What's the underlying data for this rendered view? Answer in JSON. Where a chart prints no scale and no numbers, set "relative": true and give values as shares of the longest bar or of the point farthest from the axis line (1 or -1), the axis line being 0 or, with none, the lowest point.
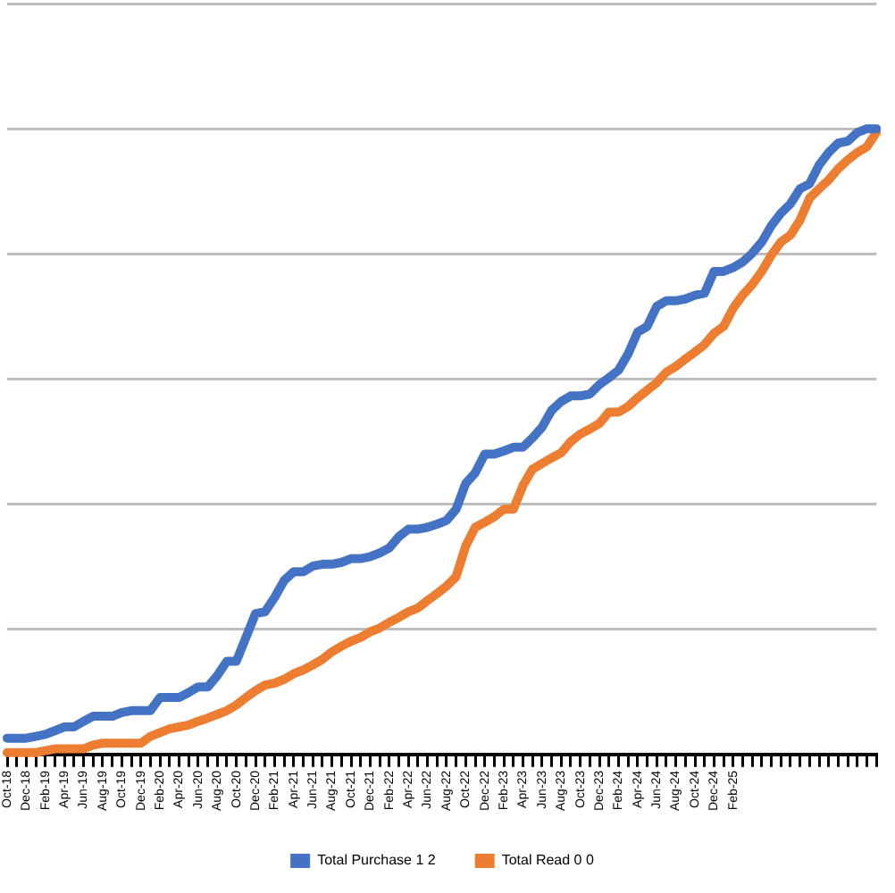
{
  "chart_data": {
    "type": "line",
    "relative": true,
    "grid": "y",
    "legend": "bottom",
    "marker": "none",
    "line_style": "solid",
    "categories": [
      "Oct-18",
      null,
      "Dec-18",
      null,
      "Feb-19",
      null,
      "Apr-19",
      null,
      "Jun-19",
      null,
      "Aug-19",
      null,
      "Oct-19",
      null,
      "Dec-19",
      null,
      "Feb-20",
      null,
      "Apr-20",
      null,
      "Jun-20",
      null,
      "Aug-20",
      null,
      "Oct-20",
      null,
      "Dec-20",
      null,
      "Feb-21",
      null,
      "Apr-21",
      null,
      "Jun-21",
      null,
      "Aug-21",
      null,
      "Oct-21",
      null,
      "Dec-21",
      null,
      "Feb-22",
      null,
      "Apr-22",
      null,
      "Jun-22",
      null,
      "Aug-22",
      null,
      "Oct-22",
      null,
      "Dec-22",
      null,
      "Feb-23",
      null,
      "Apr-23",
      null,
      "Jun-23",
      null,
      "Aug-23",
      null,
      "Oct-23",
      null,
      "Dec-23",
      null,
      "Feb-24",
      null,
      "Apr-24",
      null,
      "Jun-24",
      null,
      "Aug-24",
      null,
      "Oct-24",
      null,
      "Dec-24",
      null,
      "Feb-25",
      null,
      null,
      null,
      null,
      null,
      null,
      null,
      null,
      null,
      null,
      null,
      null,
      null,
      null,
      null
    ],
    "series": [
      {
        "name": "Total Purchase 1 2",
        "color": "#4472c4",
        "values": [
          0.026,
          0.026,
          0.026,
          0.029,
          0.032,
          0.038,
          0.044,
          0.044,
          0.053,
          0.061,
          0.061,
          0.061,
          0.067,
          0.07,
          0.07,
          0.07,
          0.091,
          0.091,
          0.091,
          0.099,
          0.108,
          0.108,
          0.126,
          0.149,
          0.149,
          0.187,
          0.225,
          0.228,
          0.251,
          0.278,
          0.292,
          0.292,
          0.301,
          0.304,
          0.304,
          0.307,
          0.313,
          0.313,
          0.316,
          0.322,
          0.33,
          0.348,
          0.36,
          0.36,
          0.363,
          0.368,
          0.374,
          0.392,
          0.433,
          0.45,
          0.48,
          0.48,
          0.485,
          0.491,
          0.491,
          0.506,
          0.523,
          0.55,
          0.564,
          0.573,
          0.573,
          0.576,
          0.591,
          0.602,
          0.614,
          0.64,
          0.675,
          0.684,
          0.716,
          0.725,
          0.725,
          0.728,
          0.734,
          0.737,
          0.772,
          0.772,
          0.778,
          0.787,
          0.801,
          0.819,
          0.845,
          0.865,
          0.88,
          0.904,
          0.912,
          0.942,
          0.962,
          0.977,
          0.98,
          0.994,
          1,
          1
        ]
      },
      {
        "name": "Total Read 0 0",
        "color": "#ed7d31",
        "values": [
          0.003,
          0.003,
          0.003,
          0.003,
          0.006,
          0.009,
          0.009,
          0.009,
          0.009,
          0.015,
          0.018,
          0.018,
          0.018,
          0.018,
          0.018,
          0.029,
          0.035,
          0.041,
          0.044,
          0.047,
          0.053,
          0.058,
          0.064,
          0.07,
          0.079,
          0.091,
          0.102,
          0.111,
          0.114,
          0.12,
          0.129,
          0.135,
          0.143,
          0.152,
          0.164,
          0.173,
          0.181,
          0.187,
          0.196,
          0.202,
          0.211,
          0.219,
          0.228,
          0.234,
          0.246,
          0.257,
          0.269,
          0.284,
          0.333,
          0.363,
          0.371,
          0.38,
          0.392,
          0.392,
          0.43,
          0.456,
          0.465,
          0.474,
          0.482,
          0.5,
          0.512,
          0.52,
          0.529,
          0.547,
          0.547,
          0.556,
          0.57,
          0.582,
          0.594,
          0.611,
          0.62,
          0.632,
          0.643,
          0.655,
          0.673,
          0.684,
          0.713,
          0.734,
          0.751,
          0.772,
          0.798,
          0.819,
          0.83,
          0.854,
          0.889,
          0.904,
          0.918,
          0.936,
          0.95,
          0.962,
          0.971,
          0.994
        ]
      }
    ]
  }
}
